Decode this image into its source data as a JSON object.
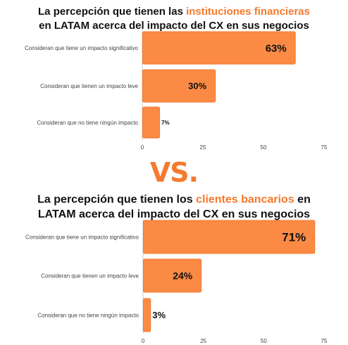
{
  "header": {
    "vs_label": "VS."
  },
  "colors": {
    "bar": "#fb8a45",
    "bar_stroke": "#f27a32",
    "accent": "#f47a2d",
    "axis": "#c8c8c8"
  },
  "chart_data": [
    {
      "type": "bar",
      "orientation": "horizontal",
      "title": "La percepción que tienen las instituciones financieras en LATAM acerca del impacto del CX en sus negocios",
      "title_parts": {
        "line1_before": "La percepción que tienen las ",
        "line1_accent": "instituciones financieras",
        "line2": "en LATAM acerca del impacto del CX en sus negocios"
      },
      "categories": [
        "Consideran que tiene un impacto significativo",
        "Consideran que tienen un impacto leve",
        "Consideran que no tiene ningún impacto"
      ],
      "values": [
        63,
        30,
        7
      ],
      "value_labels": [
        "63%",
        "30%",
        "7%"
      ],
      "ticks": [
        0,
        25,
        50,
        75
      ],
      "tick_labels": [
        "0",
        "25",
        "50",
        "75"
      ],
      "xlim": [
        0,
        75
      ],
      "grid": false,
      "legend": "none"
    },
    {
      "type": "bar",
      "orientation": "horizontal",
      "title": "La percepción que tienen los clientes bancarios en LATAM acerca del impacto del CX en sus negocios",
      "title_parts": {
        "line1_before": "La percepción que tienen los ",
        "line1_accent": "clientes bancarios",
        "line1_after": " en",
        "line2": "LATAM acerca del impacto del CX en sus negocios"
      },
      "categories": [
        "Consideran que tiene un impacto significativo",
        "Consideran que tienen un impacto leve",
        "Consideran que no tiene ningún impacto"
      ],
      "values": [
        71,
        24,
        3
      ],
      "value_labels": [
        "71%",
        "24%",
        "3%"
      ],
      "ticks": [
        0,
        25,
        50,
        75
      ],
      "tick_labels": [
        "0",
        "25",
        "50",
        "75"
      ],
      "xlim": [
        0,
        75
      ],
      "grid": false,
      "legend": "none"
    }
  ]
}
